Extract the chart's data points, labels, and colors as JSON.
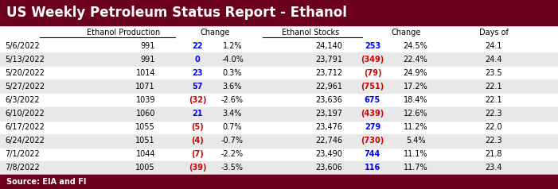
{
  "title": "US Weekly Petroleum Status Report - Ethanol",
  "title_bg": "#6B0020",
  "title_color": "#FFFFFF",
  "footer": "Source: EIA and FI",
  "footer_bg": "#6B0020",
  "footer_color": "#FFFFFF",
  "dates": [
    "5/6/2022",
    "5/13/2022",
    "5/20/2022",
    "5/27/2022",
    "6/3/2022",
    "6/10/2022",
    "6/17/2022",
    "6/24/2022",
    "7/1/2022",
    "7/8/2022"
  ],
  "eth_prod": [
    "991",
    "991",
    "1014",
    "1071",
    "1039",
    "1060",
    "1055",
    "1051",
    "1044",
    "1005"
  ],
  "ch1_val": [
    "22",
    "0",
    "23",
    "57",
    "(32)",
    "21",
    "(5)",
    "(4)",
    "(7)",
    "(39)"
  ],
  "ch1_color": [
    "#0000FF",
    "#0000FF",
    "#0000FF",
    "#0000FF",
    "#CC0000",
    "#0000FF",
    "#CC0000",
    "#CC0000",
    "#CC0000",
    "#CC0000"
  ],
  "ch1_pct": [
    "1.2%",
    "-4.0%",
    "0.3%",
    "3.6%",
    "-2.6%",
    "3.4%",
    "0.7%",
    "-0.7%",
    "-2.2%",
    "-3.5%"
  ],
  "eth_stocks": [
    "24,140",
    "23,791",
    "23,712",
    "22,961",
    "23,636",
    "23,197",
    "23,476",
    "22,746",
    "23,490",
    "23,606"
  ],
  "ch2_val": [
    "253",
    "(349)",
    "(79)",
    "(751)",
    "675",
    "(439)",
    "279",
    "(730)",
    "744",
    "116"
  ],
  "ch2_color": [
    "#0000FF",
    "#CC0000",
    "#CC0000",
    "#CC0000",
    "#0000FF",
    "#CC0000",
    "#0000FF",
    "#CC0000",
    "#0000FF",
    "#0000FF"
  ],
  "ch2_pct": [
    "24.5%",
    "22.4%",
    "24.9%",
    "17.2%",
    "18.4%",
    "12.6%",
    "11.2%",
    "5.4%",
    "11.1%",
    "11.7%"
  ],
  "days_of": [
    "24.1",
    "24.4",
    "23.5",
    "22.1",
    "22.1",
    "22.3",
    "22.0",
    "22.3",
    "21.8",
    "23.4"
  ],
  "bg_color": "#FFFFFF",
  "even_row_bg": "#E8E8E8",
  "title_fs": 12,
  "header_fs": 7,
  "data_fs": 7,
  "footer_fs": 7
}
